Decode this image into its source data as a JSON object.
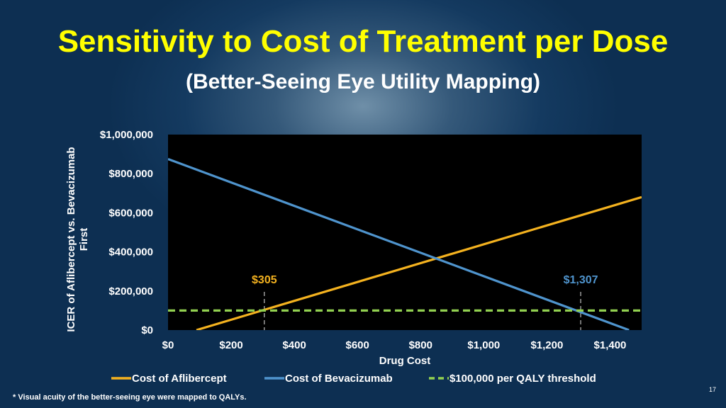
{
  "slide": {
    "title": "Sensitivity to Cost of Treatment per Dose",
    "subtitle": "(Better-Seeing Eye Utility Mapping)",
    "footnote": "* Visual acuity of the better-seeing eye were mapped to QALYs.",
    "page_number": "17"
  },
  "chart_data": {
    "type": "line",
    "xlabel": "Drug Cost",
    "ylabel_lines": [
      "ICER of Aflibercept vs. Bevacizumab",
      "First"
    ],
    "xlim": [
      0,
      1500
    ],
    "ylim": [
      0,
      1000000
    ],
    "x_ticks": [
      0,
      200,
      400,
      600,
      800,
      1000,
      1200,
      1400
    ],
    "x_tick_labels": [
      "$0",
      "$200",
      "$400",
      "$600",
      "$800",
      "$1,000",
      "$1,200",
      "$1,400"
    ],
    "y_ticks": [
      0,
      200000,
      400000,
      600000,
      800000,
      1000000
    ],
    "y_tick_labels": [
      "$0",
      "$200,000",
      "$400,000",
      "$600,000",
      "$800,000",
      "$1,000,000"
    ],
    "plot_background": "#000000",
    "series": [
      {
        "name": "Cost of Aflibercept",
        "color": "#f4b21f",
        "style": "solid",
        "x": [
          90,
          1500
        ],
        "y": [
          0,
          680000
        ]
      },
      {
        "name": "Cost of Bevacizumab",
        "color": "#4f94cd",
        "style": "solid",
        "x": [
          0,
          1460
        ],
        "y": [
          875000,
          0
        ]
      },
      {
        "name": "$100,000 per QALY threshold",
        "color": "#92d050",
        "style": "dashed",
        "x": [
          0,
          1500
        ],
        "y": [
          100000,
          100000
        ]
      }
    ],
    "annotations": [
      {
        "text": "$305",
        "x": 305,
        "y": 100000,
        "color": "#f4b21f"
      },
      {
        "text": "$1,307",
        "x": 1307,
        "y": 100000,
        "color": "#4f94cd"
      }
    ],
    "legend_position": "bottom"
  }
}
